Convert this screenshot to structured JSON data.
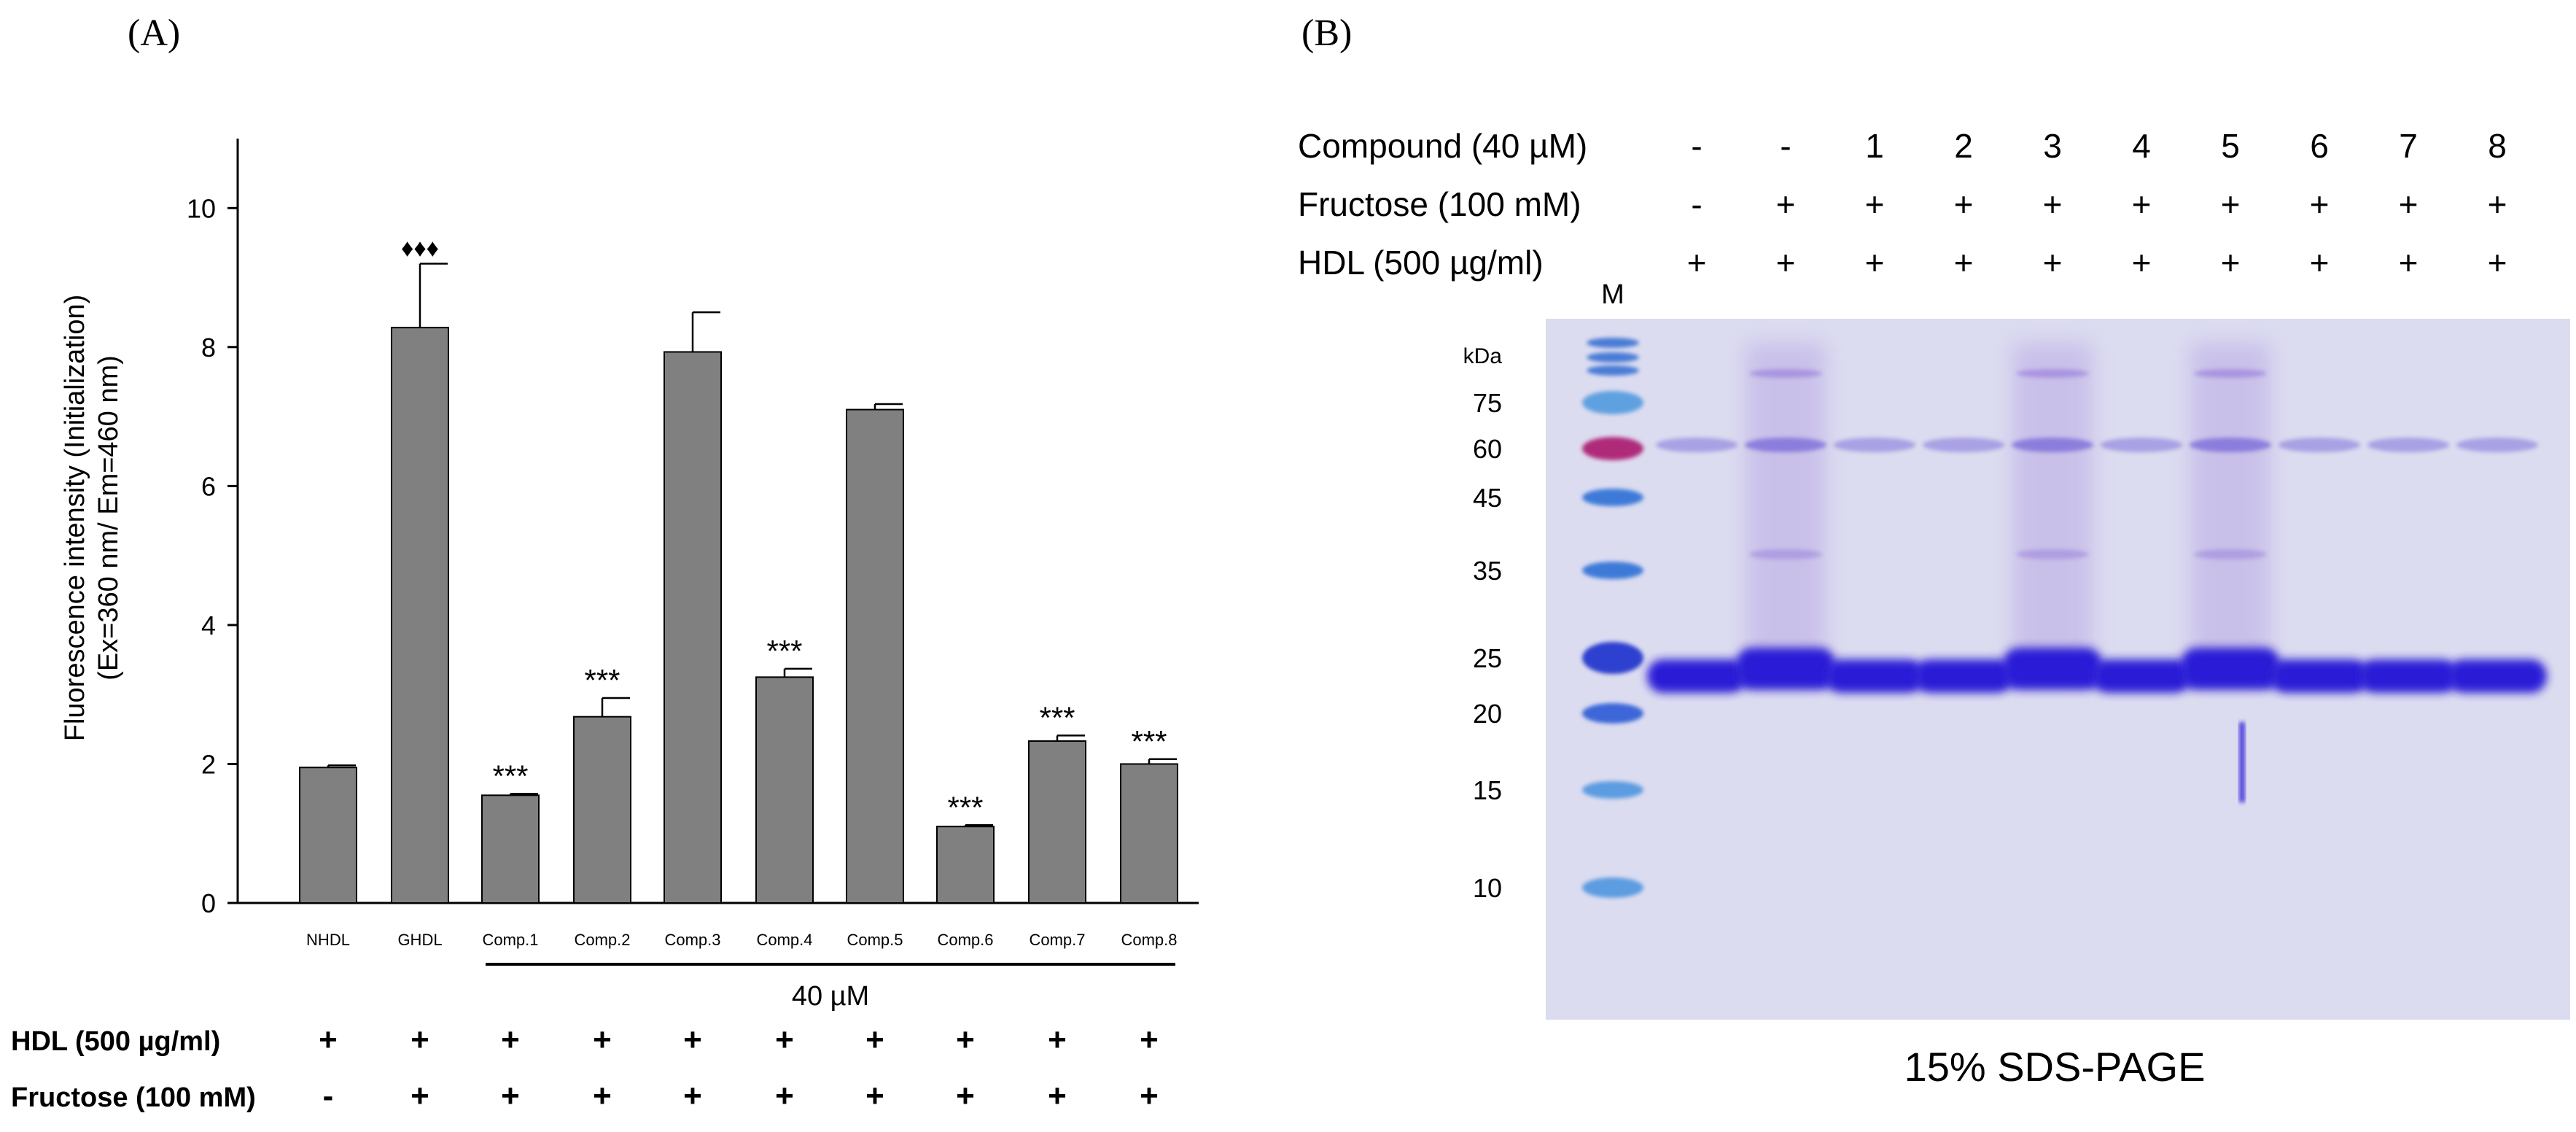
{
  "panel_a": {
    "label": "(A)",
    "chart_data": {
      "type": "bar",
      "ylabel_line1": "Fluorescence intensity (Initialization)",
      "ylabel_line2": "(Ex=360 nm/ Em=460 nm)",
      "ylim": [
        0,
        11
      ],
      "yticks": [
        "0",
        "2",
        "4",
        "6",
        "8",
        "10"
      ],
      "categories": [
        "NHDL",
        "GHDL",
        "Comp.1",
        "Comp.2",
        "Comp.3",
        "Comp.4",
        "Comp.5",
        "Comp.6",
        "Comp.7",
        "Comp.8"
      ],
      "values": [
        1.95,
        8.28,
        1.55,
        2.68,
        7.93,
        3.25,
        7.1,
        1.1,
        2.33,
        2.0
      ],
      "errors": [
        0.03,
        0.92,
        0.02,
        0.27,
        0.57,
        0.12,
        0.08,
        0.02,
        0.08,
        0.07
      ],
      "annotations": [
        "",
        "♦♦♦",
        "***",
        "***",
        "",
        "***",
        "",
        "***",
        "***",
        "***"
      ],
      "bar_color": "#808080",
      "bracket_label": "40 µM"
    },
    "condition_rows": [
      {
        "label": "HDL (500 µg/ml)",
        "marks": [
          "+",
          "+",
          "+",
          "+",
          "+",
          "+",
          "+",
          "+",
          "+",
          "+"
        ]
      },
      {
        "label": "Fructose (100 mM)",
        "marks": [
          "-",
          "+",
          "+",
          "+",
          "+",
          "+",
          "+",
          "+",
          "+",
          "+"
        ]
      }
    ]
  },
  "panel_b": {
    "label": "(B)",
    "header_rows": [
      {
        "label": "Compound (40 µM)",
        "marks": [
          "-",
          "-",
          "1",
          "2",
          "3",
          "4",
          "5",
          "6",
          "7",
          "8"
        ]
      },
      {
        "label": "Fructose (100 mM)",
        "marks": [
          "-",
          "+",
          "+",
          "+",
          "+",
          "+",
          "+",
          "+",
          "+",
          "+"
        ]
      },
      {
        "label": "HDL (500 µg/ml)",
        "marks": [
          "+",
          "+",
          "+",
          "+",
          "+",
          "+",
          "+",
          "+",
          "+",
          "+"
        ]
      }
    ],
    "marker_lane_label": "M",
    "kda_label": "kDa",
    "marker_kda": [
      "75",
      "60",
      "45",
      "35",
      "25",
      "20",
      "15",
      "10"
    ],
    "caption": "15% SDS-PAGE",
    "gel_color": "#dcdcf0",
    "band_color": "#2b1fd6"
  }
}
